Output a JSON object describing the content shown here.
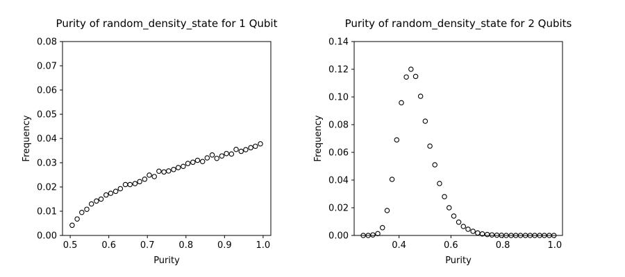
{
  "chart_data": [
    {
      "type": "scatter",
      "title": "Purity of random_density_state for 1 Qubit",
      "xlabel": "Purity",
      "ylabel": "Frequency",
      "xlim": [
        0.48,
        1.02
      ],
      "ylim": [
        0,
        0.08
      ],
      "xticks": [
        0.5,
        0.6,
        0.7,
        0.8,
        0.9,
        1.0
      ],
      "xtick_labels": [
        "0.5",
        "0.6",
        "0.7",
        "0.8",
        "0.9",
        "1.0"
      ],
      "yticks": [
        0,
        0.01,
        0.02,
        0.03,
        0.04,
        0.05,
        0.06,
        0.07,
        0.08
      ],
      "ytick_labels": [
        "0.00",
        "0.01",
        "0.02",
        "0.03",
        "0.04",
        "0.05",
        "0.06",
        "0.07",
        "0.08"
      ],
      "marker": "open-circle",
      "x": [
        0.505,
        0.518,
        0.53,
        0.543,
        0.555,
        0.568,
        0.58,
        0.593,
        0.605,
        0.618,
        0.63,
        0.643,
        0.655,
        0.668,
        0.68,
        0.693,
        0.705,
        0.718,
        0.73,
        0.743,
        0.755,
        0.768,
        0.78,
        0.793,
        0.805,
        0.818,
        0.83,
        0.843,
        0.855,
        0.868,
        0.88,
        0.893,
        0.905,
        0.918,
        0.93,
        0.943,
        0.955,
        0.968,
        0.98,
        0.993
      ],
      "y": [
        0.0042,
        0.0068,
        0.0095,
        0.0108,
        0.013,
        0.0142,
        0.015,
        0.0167,
        0.0174,
        0.0182,
        0.0193,
        0.021,
        0.021,
        0.0214,
        0.0222,
        0.0232,
        0.0249,
        0.0243,
        0.0265,
        0.0262,
        0.0266,
        0.0272,
        0.028,
        0.0285,
        0.0297,
        0.0302,
        0.031,
        0.0305,
        0.032,
        0.0332,
        0.0318,
        0.0328,
        0.0338,
        0.0336,
        0.0355,
        0.0347,
        0.0354,
        0.0362,
        0.0368,
        0.0378
      ]
    },
    {
      "type": "scatter",
      "title": "Purity of random_density_state for 2 Qubits",
      "xlabel": "Purity",
      "ylabel": "Frequency",
      "xlim": [
        0.227,
        1.03
      ],
      "ylim": [
        0,
        0.14
      ],
      "xticks": [
        0.4,
        0.6,
        0.8,
        1.0
      ],
      "xtick_labels": [
        "0.4",
        "0.6",
        "0.8",
        "1.0"
      ],
      "yticks": [
        0,
        0.02,
        0.04,
        0.06,
        0.08,
        0.1,
        0.12,
        0.14
      ],
      "ytick_labels": [
        "0.00",
        "0.02",
        "0.04",
        "0.06",
        "0.08",
        "0.10",
        "0.12",
        "0.14"
      ],
      "marker": "open-circle",
      "x": [
        0.262,
        0.281,
        0.299,
        0.318,
        0.336,
        0.354,
        0.373,
        0.391,
        0.409,
        0.428,
        0.446,
        0.464,
        0.483,
        0.501,
        0.519,
        0.538,
        0.556,
        0.575,
        0.593,
        0.611,
        0.63,
        0.648,
        0.666,
        0.685,
        0.703,
        0.721,
        0.74,
        0.758,
        0.777,
        0.795,
        0.813,
        0.832,
        0.85,
        0.868,
        0.887,
        0.905,
        0.923,
        0.942,
        0.96,
        0.979,
        0.997
      ],
      "y": [
        0.0,
        0.0,
        0.0004,
        0.0013,
        0.0056,
        0.018,
        0.0405,
        0.069,
        0.0958,
        0.1144,
        0.12,
        0.1148,
        0.1005,
        0.0825,
        0.0645,
        0.051,
        0.0375,
        0.028,
        0.02,
        0.014,
        0.0096,
        0.0065,
        0.0045,
        0.003,
        0.0018,
        0.0011,
        0.0007,
        0.0004,
        0.0002,
        0.0001,
        0.0,
        0.0,
        0.0,
        0.0,
        0.0,
        0.0,
        0.0,
        0.0,
        0.0,
        0.0,
        0.0
      ]
    }
  ]
}
